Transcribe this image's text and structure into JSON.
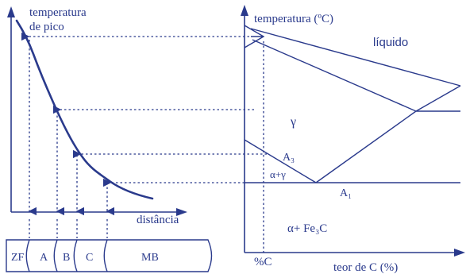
{
  "left_plot": {
    "ylabel_line1": "temperatura",
    "ylabel_line2": "de pico",
    "xlabel": "distância"
  },
  "zones": [
    {
      "label": "ZF"
    },
    {
      "label": "A"
    },
    {
      "label": "B"
    },
    {
      "label": "C"
    },
    {
      "label": "MB"
    }
  ],
  "phase_diagram": {
    "ylabel": "temperatura (ºC)",
    "xlabel": "teor de C (%)",
    "liquid_label": "líquido",
    "gamma_label": "γ",
    "a3_label": "A₃",
    "alpha_gamma_label": "α+γ",
    "a1_label": "A₁",
    "alpha_fe3c_label": "α+ Fe₃C",
    "carbon_marker": "%C"
  },
  "colors": {
    "ink": "#2a3a8c",
    "background": "#ffffff"
  }
}
